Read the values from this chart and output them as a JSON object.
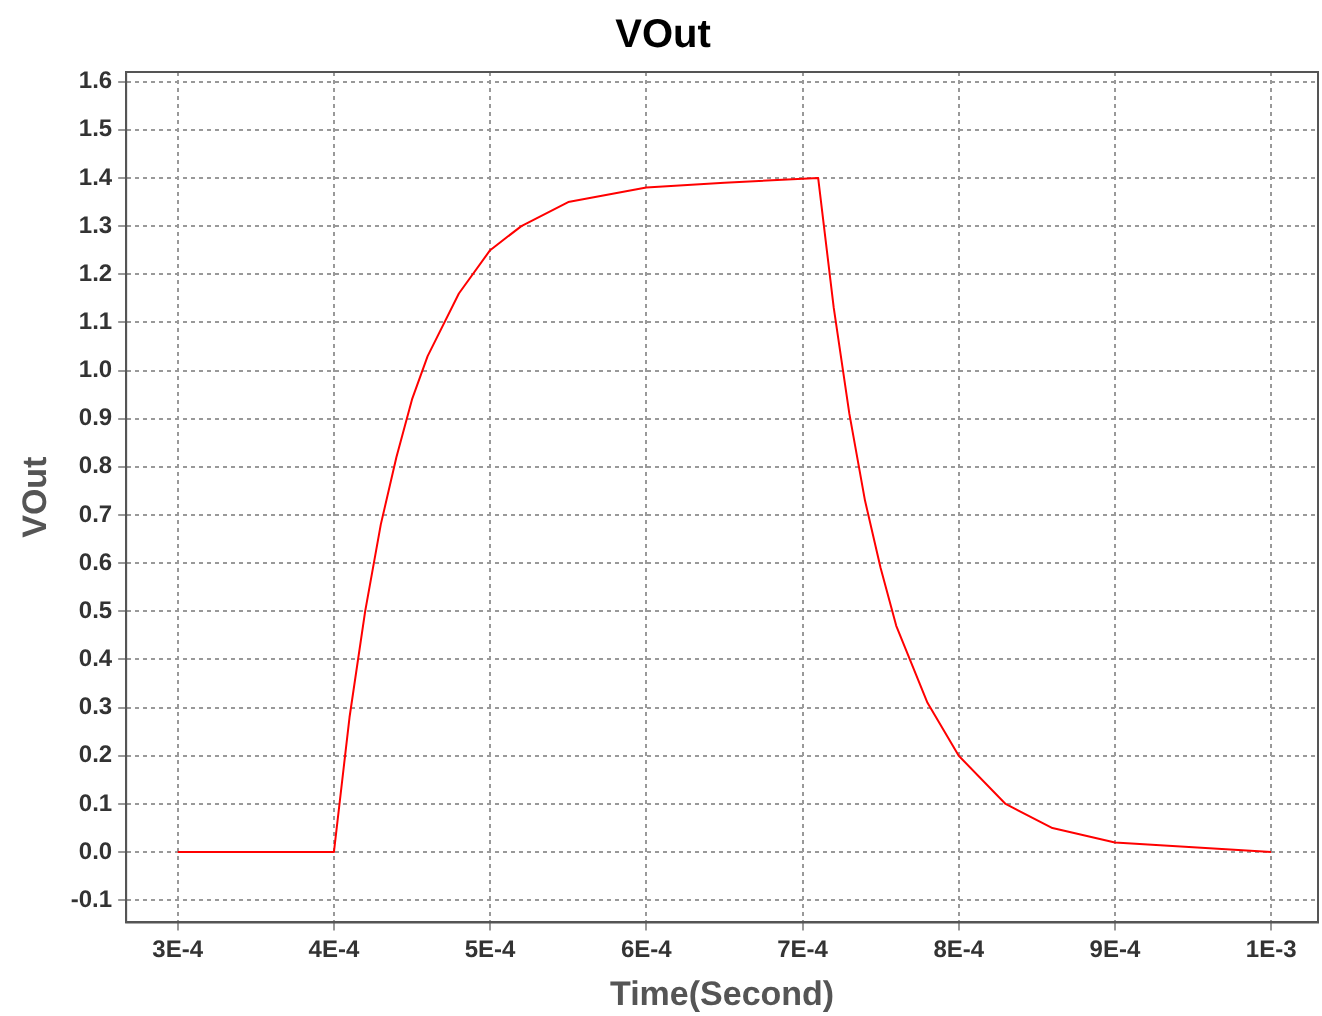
{
  "chart_data": {
    "type": "line",
    "title": "VOut",
    "xlabel": "Time(Second)",
    "ylabel": "VOut",
    "xlim": [
      0.000267,
      0.00103
    ],
    "ylim": [
      -0.146,
      1.62
    ],
    "xticks": [
      {
        "value": 0.0003,
        "label": "3E-4"
      },
      {
        "value": 0.0004,
        "label": "4E-4"
      },
      {
        "value": 0.0005,
        "label": "5E-4"
      },
      {
        "value": 0.0006,
        "label": "6E-4"
      },
      {
        "value": 0.0007,
        "label": "7E-4"
      },
      {
        "value": 0.0008,
        "label": "8E-4"
      },
      {
        "value": 0.0009,
        "label": "9E-4"
      },
      {
        "value": 0.001,
        "label": "1E-3"
      }
    ],
    "yticks": [
      {
        "value": -0.1,
        "label": "-0.1"
      },
      {
        "value": 0,
        "label": "0.0"
      },
      0.1,
      0.2,
      0.3,
      0.4,
      0.5,
      0.6,
      0.7,
      0.8,
      0.9,
      {
        "value": 1,
        "label": "1.0"
      },
      1.1,
      1.2,
      1.3,
      1.4,
      1.5,
      1.6
    ],
    "grid": true,
    "legend": false,
    "marker": "none",
    "line_style": "solid",
    "series": [
      {
        "color": "#ff0000",
        "x": [
          0.0003,
          0.0004,
          0.00041,
          0.00042,
          0.00043,
          0.00044,
          0.00045,
          0.00046,
          0.00048,
          0.0005,
          0.00052,
          0.00055,
          0.0006,
          0.00065,
          0.00071,
          0.00072,
          0.00073,
          0.00074,
          0.00075,
          0.00076,
          0.00078,
          0.0008,
          0.00083,
          0.00086,
          0.0009,
          0.00095,
          0.001
        ],
        "values": [
          0,
          0,
          0.28,
          0.5,
          0.68,
          0.82,
          0.94,
          1.03,
          1.16,
          1.25,
          1.3,
          1.35,
          1.38,
          1.39,
          1.4,
          1.13,
          0.91,
          0.73,
          0.59,
          0.47,
          0.31,
          0.2,
          0.1,
          0.05,
          0.02,
          0.01,
          0
        ]
      }
    ]
  }
}
